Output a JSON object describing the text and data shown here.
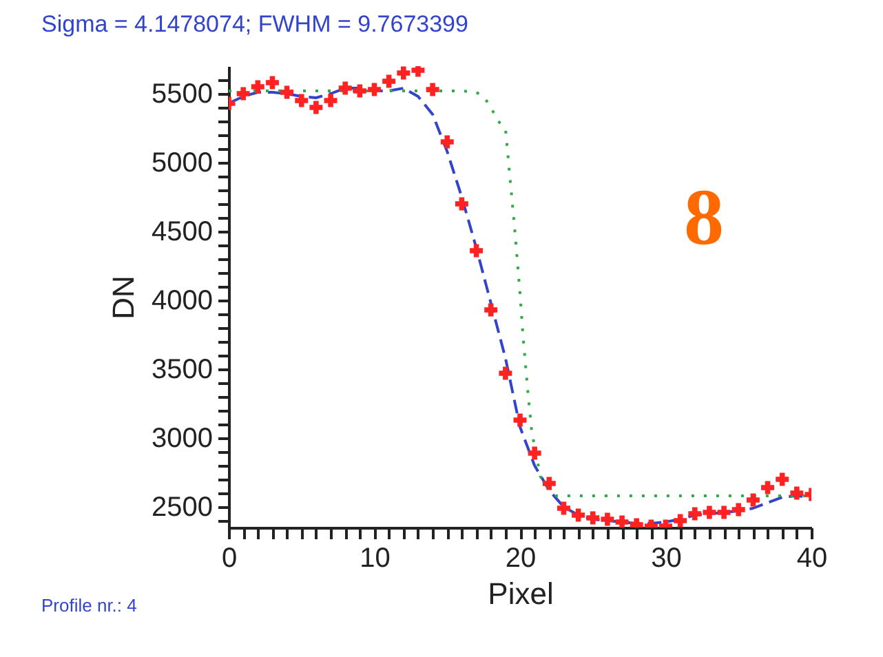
{
  "chart_data": {
    "type": "line",
    "title": "Sigma =  4.1478074; FWHM =  9.7673399",
    "xlabel": "Pixel",
    "ylabel": "DN",
    "annotations": [
      "8",
      "Profile nr.: 4"
    ],
    "xlim": [
      0,
      40
    ],
    "ylim": [
      2350,
      5700
    ],
    "xticks": [
      0,
      {
        "value": 1,
        "label": null
      },
      {
        "value": 2,
        "label": null
      },
      {
        "value": 3,
        "label": null
      },
      {
        "value": 4,
        "label": null
      },
      {
        "value": 5,
        "label": null
      },
      {
        "value": 6,
        "label": null
      },
      {
        "value": 7,
        "label": null
      },
      {
        "value": 8,
        "label": null
      },
      {
        "value": 9,
        "label": null
      },
      10,
      {
        "value": 11,
        "label": null
      },
      {
        "value": 12,
        "label": null
      },
      {
        "value": 13,
        "label": null
      },
      {
        "value": 14,
        "label": null
      },
      {
        "value": 15,
        "label": null
      },
      {
        "value": 16,
        "label": null
      },
      {
        "value": 17,
        "label": null
      },
      {
        "value": 18,
        "label": null
      },
      {
        "value": 19,
        "label": null
      },
      20,
      {
        "value": 21,
        "label": null
      },
      {
        "value": 22,
        "label": null
      },
      {
        "value": 23,
        "label": null
      },
      {
        "value": 24,
        "label": null
      },
      {
        "value": 25,
        "label": null
      },
      {
        "value": 26,
        "label": null
      },
      {
        "value": 27,
        "label": null
      },
      {
        "value": 28,
        "label": null
      },
      {
        "value": 29,
        "label": null
      },
      30,
      {
        "value": 31,
        "label": null
      },
      {
        "value": 32,
        "label": null
      },
      {
        "value": 33,
        "label": null
      },
      {
        "value": 34,
        "label": null
      },
      {
        "value": 35,
        "label": null
      },
      {
        "value": 36,
        "label": null
      },
      {
        "value": 37,
        "label": null
      },
      {
        "value": 38,
        "label": null
      },
      {
        "value": 39,
        "label": null
      },
      40
    ],
    "yticks": [
      {
        "value": 2400,
        "label": null
      },
      2500,
      {
        "value": 2600,
        "label": null
      },
      {
        "value": 2700,
        "label": null
      },
      {
        "value": 2800,
        "label": null
      },
      {
        "value": 2900,
        "label": null
      },
      3000,
      {
        "value": 3100,
        "label": null
      },
      {
        "value": 3200,
        "label": null
      },
      {
        "value": 3300,
        "label": null
      },
      {
        "value": 3400,
        "label": null
      },
      3500,
      {
        "value": 3600,
        "label": null
      },
      {
        "value": 3700,
        "label": null
      },
      {
        "value": 3800,
        "label": null
      },
      {
        "value": 3900,
        "label": null
      },
      4000,
      {
        "value": 4100,
        "label": null
      },
      {
        "value": 4200,
        "label": null
      },
      {
        "value": 4300,
        "label": null
      },
      {
        "value": 4400,
        "label": null
      },
      4500,
      {
        "value": 4600,
        "label": null
      },
      {
        "value": 4700,
        "label": null
      },
      {
        "value": 4800,
        "label": null
      },
      {
        "value": 4900,
        "label": null
      },
      5000,
      {
        "value": 5100,
        "label": null
      },
      {
        "value": 5200,
        "label": null
      },
      {
        "value": 5300,
        "label": null
      },
      {
        "value": 5400,
        "label": null
      },
      5500,
      {
        "value": 5600,
        "label": null
      }
    ],
    "grid": false,
    "series": [
      {
        "line_style": "dashed",
        "color": "#3344cc",
        "x": [
          0,
          1,
          2,
          3,
          4,
          5,
          6,
          7,
          8,
          9,
          10,
          11,
          12,
          13,
          14,
          15,
          16,
          17,
          18,
          19,
          20,
          21,
          22,
          23,
          24,
          25,
          26,
          27,
          28,
          29,
          30,
          31,
          32,
          33,
          34,
          35,
          36,
          37,
          38,
          39,
          40
        ],
        "values": [
          5430,
          5480,
          5510,
          5510,
          5500,
          5480,
          5470,
          5500,
          5540,
          5540,
          5520,
          5520,
          5540,
          5480,
          5350,
          5080,
          4750,
          4380,
          3980,
          3580,
          3080,
          2800,
          2620,
          2500,
          2440,
          2410,
          2400,
          2390,
          2380,
          2380,
          2390,
          2410,
          2440,
          2450,
          2460,
          2470,
          2490,
          2530,
          2570,
          2580,
          2570
        ]
      },
      {
        "line_style": "dotted",
        "color": "#33aa44",
        "x": [
          0,
          16,
          17,
          17.5,
          18,
          18.5,
          19,
          19.3,
          19.6,
          20,
          20.2,
          20.5,
          20.8,
          21.4,
          22,
          22.5,
          40
        ],
        "values": [
          5520,
          5520,
          5510,
          5480,
          5400,
          5300,
          5250,
          4900,
          4560,
          4050,
          3750,
          3380,
          3050,
          2720,
          2620,
          2580,
          2580
        ]
      },
      {
        "type": "scatter",
        "marker": "cross",
        "color": "#ff2222",
        "x": [
          0,
          1,
          2,
          3,
          4,
          5,
          6,
          7,
          8,
          9,
          10,
          11,
          12,
          13,
          14,
          15,
          16,
          17,
          18,
          19,
          20,
          21,
          22,
          23,
          24,
          25,
          26,
          27,
          28,
          29,
          30,
          31,
          32,
          33,
          34,
          35,
          36,
          37,
          38,
          39,
          40
        ],
        "values": [
          5430,
          5500,
          5550,
          5580,
          5510,
          5450,
          5400,
          5450,
          5540,
          5520,
          5530,
          5590,
          5650,
          5670,
          5530,
          5150,
          4700,
          4360,
          3930,
          3470,
          3130,
          2890,
          2670,
          2490,
          2440,
          2420,
          2410,
          2390,
          2370,
          2360,
          2360,
          2400,
          2450,
          2460,
          2460,
          2480,
          2550,
          2640,
          2700,
          2600,
          2590
        ]
      }
    ]
  }
}
